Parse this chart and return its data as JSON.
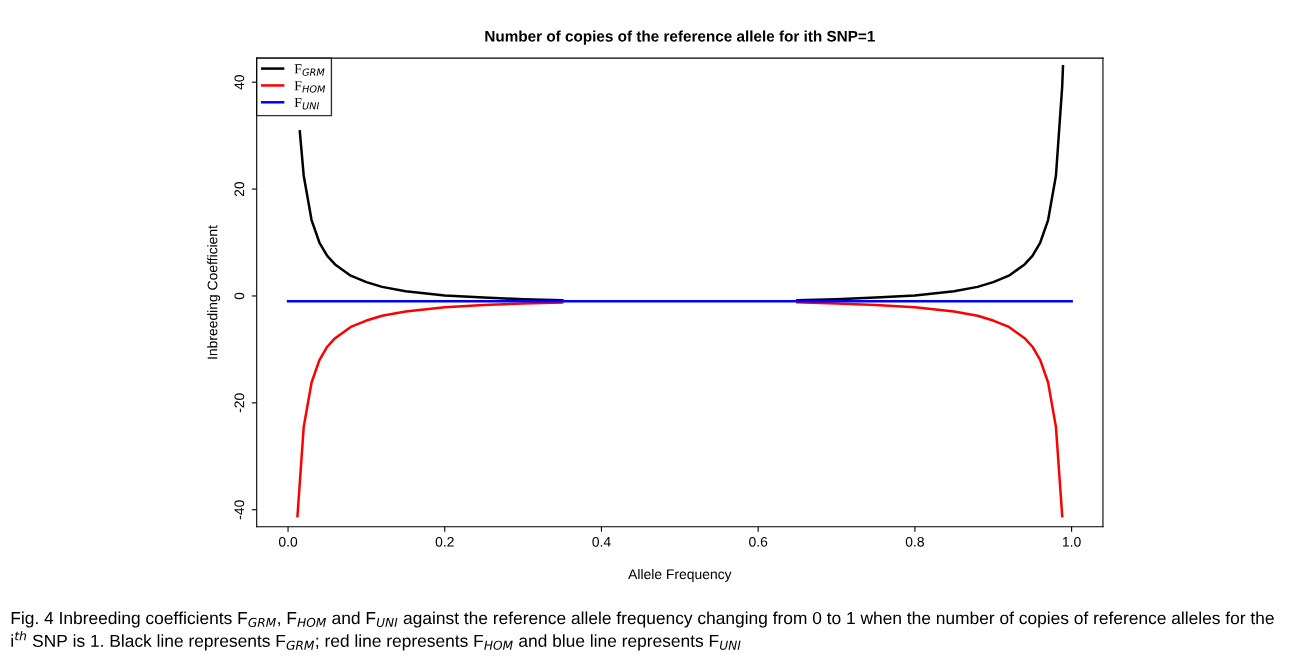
{
  "chart_data": {
    "type": "line",
    "title": "Number of copies of the reference allele for ith SNP=1",
    "xlabel": "Allele Frequency",
    "ylabel": "Inbreeding Coefficient",
    "xlim": [
      -0.04,
      1.04
    ],
    "xticks": [
      {
        "value": 0,
        "label": "0.0"
      },
      0.2,
      0.4,
      0.6,
      0.8,
      {
        "value": 1,
        "label": "1.0"
      }
    ],
    "ylim": [
      -43.2,
      44.5
    ],
    "yticks": [
      -40,
      -20,
      0,
      20,
      40
    ],
    "grid": false,
    "legend": "top left",
    "marker": "none",
    "line_style": "solid",
    "series": [
      {
        "name": "F$_{GRM}$",
        "color": "#000000",
        "x": [
          0.015,
          0.02,
          0.03,
          0.04,
          0.05,
          0.06,
          0.08,
          0.1,
          0.12,
          0.15,
          0.2,
          0.25,
          0.3,
          0.35,
          0.5,
          0.65,
          0.7,
          0.75,
          0.8,
          0.85,
          0.88,
          0.9,
          0.92,
          0.94,
          0.95,
          0.96,
          0.97,
          0.98,
          0.988,
          0.989
        ],
        "values": [
          30.8,
          22.5,
          14.2,
          10.0,
          7.5,
          5.9,
          3.8,
          2.6,
          1.7,
          0.9,
          0.1,
          -0.3,
          -0.6,
          -0.8,
          null,
          -0.8,
          -0.6,
          -0.3,
          0.1,
          0.9,
          1.7,
          2.6,
          3.8,
          5.9,
          7.5,
          10.0,
          14.2,
          22.5,
          39.2,
          43.0
        ]
      },
      {
        "name": "F$_{HOM}$",
        "color": "#ff0000",
        "x": [
          0.012,
          0.02,
          0.03,
          0.04,
          0.05,
          0.06,
          0.08,
          0.1,
          0.12,
          0.15,
          0.2,
          0.25,
          0.3,
          0.35,
          0.5,
          0.65,
          0.7,
          0.75,
          0.8,
          0.85,
          0.88,
          0.9,
          0.92,
          0.94,
          0.95,
          0.96,
          0.97,
          0.98,
          0.988
        ],
        "values": [
          -41.2,
          -24.5,
          -16.2,
          -12.0,
          -9.5,
          -7.9,
          -5.8,
          -4.6,
          -3.7,
          -2.9,
          -2.1,
          -1.7,
          -1.4,
          -1.2,
          null,
          -1.2,
          -1.4,
          -1.7,
          -2.1,
          -2.9,
          -3.7,
          -4.6,
          -5.8,
          -7.9,
          -9.5,
          -12.0,
          -16.2,
          -24.5,
          -41.2
        ]
      },
      {
        "name": "F$_{UNI}$",
        "color": "#0000ff",
        "x": [
          0,
          1
        ],
        "values": [
          -1,
          -1
        ]
      }
    ],
    "annotations": [
      "Fig. 4 Inbreeding coefficients F$_{GRM}$, F$_{HOM}$ and F$_{UNI}$ against the reference allele frequency changing from 0 to 1 when the number of copies of reference alleles for the i$^{th}$ SNP is 1. Black line represents F$_{GRM}$; red line represents F$_{HOM}$ and blue line represents F$_{UNI}$"
    ]
  }
}
